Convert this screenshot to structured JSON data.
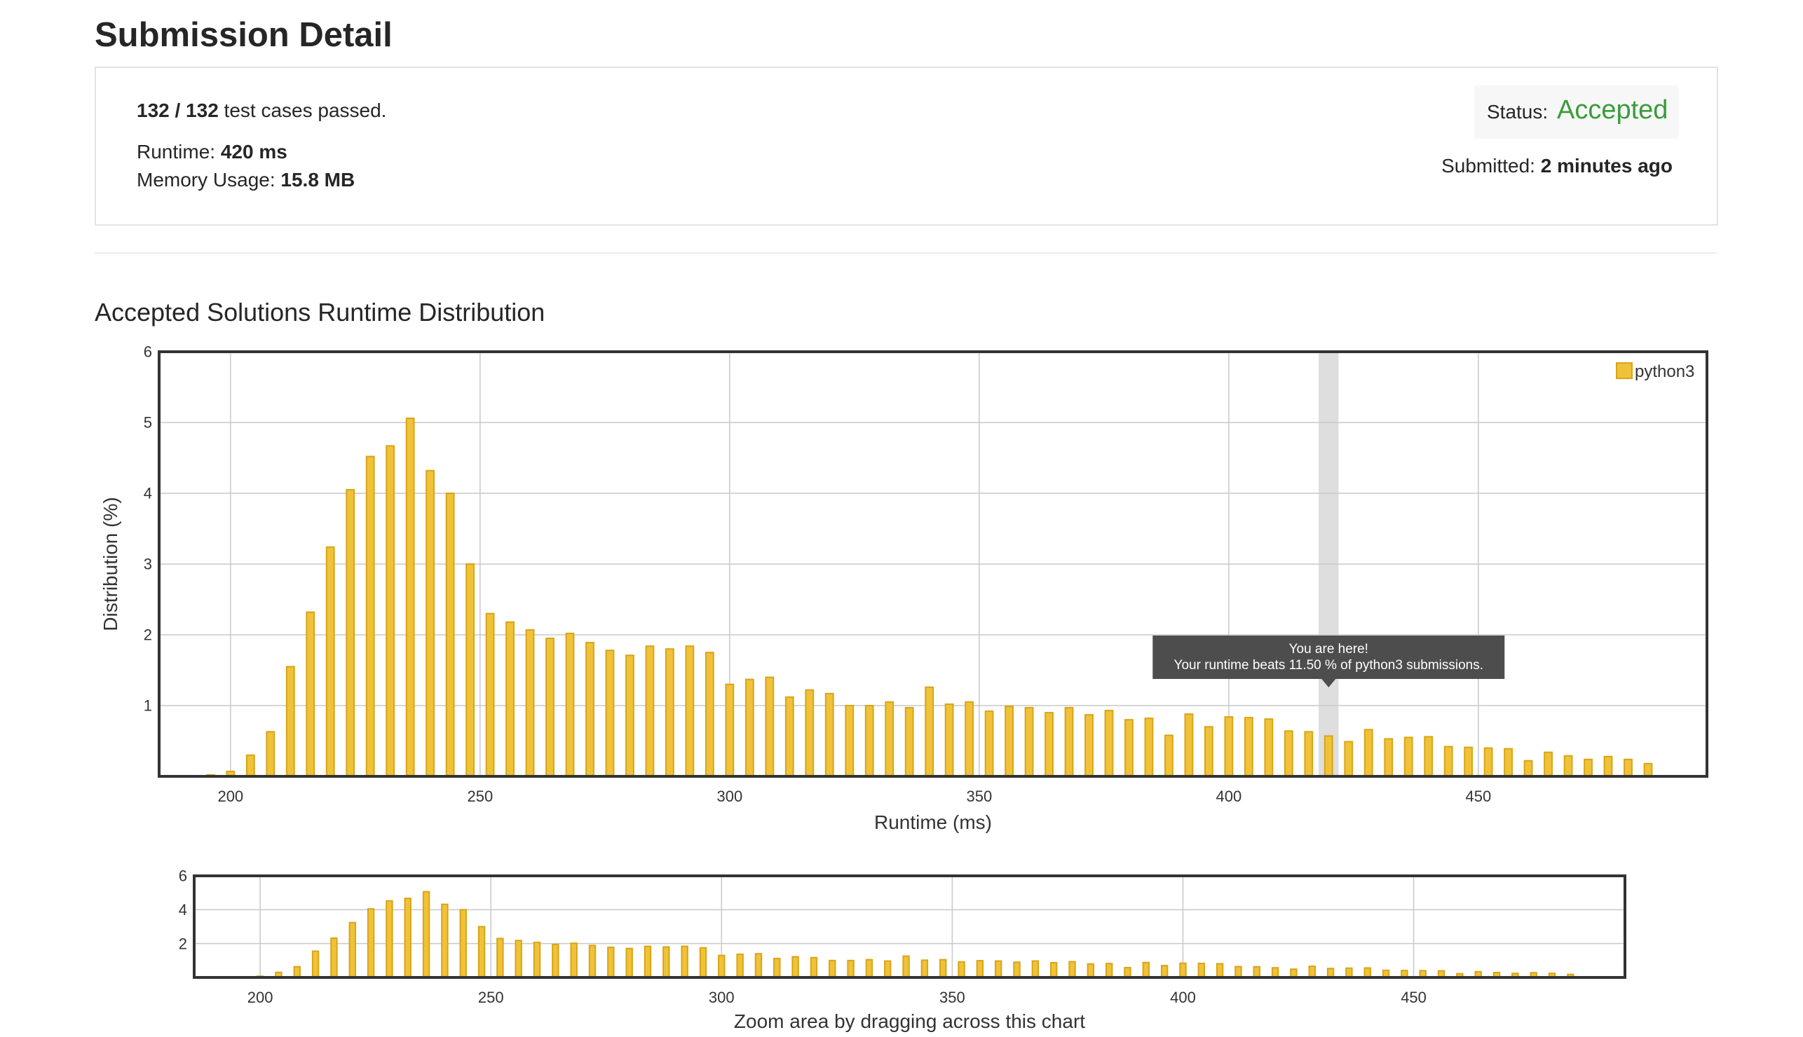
{
  "page": {
    "title": "Submission Detail"
  },
  "summary": {
    "passed": "132 / 132",
    "passed_suffix": " test cases passed.",
    "runtime_label": "Runtime: ",
    "runtime_value": "420 ms",
    "memory_label": "Memory Usage: ",
    "memory_value": "15.8 MB",
    "status_label": "Status: ",
    "status_value": "Accepted",
    "submitted_label": "Submitted: ",
    "submitted_value": "2 minutes ago"
  },
  "colors": {
    "bar_fill": "#f0c23a",
    "bar_stroke": "#d9a515",
    "accepted": "#3b9b3b",
    "highlight": "#dedede",
    "tooltip_bg": "#4d4d4d"
  },
  "section": {
    "title": "Accepted Solutions Runtime Distribution"
  },
  "tooltip": {
    "line1": "You are here!",
    "line2": "Your runtime beats 11.50 % of python3 submissions."
  },
  "zoom_caption": "Zoom area by dragging across this chart",
  "chart_data": [
    {
      "type": "bar",
      "xlabel": "Runtime (ms)",
      "ylabel": "Distribution (%)",
      "xlim": [
        185.7,
        495.8
      ],
      "ylim": [
        0,
        6
      ],
      "x_ticks": [
        200,
        250,
        300,
        350,
        400,
        450
      ],
      "y_ticks": [
        1,
        2,
        3,
        4,
        5,
        6
      ],
      "grid": true,
      "legend_position": "top-right",
      "highlight_x": 420,
      "series": [
        {
          "name": "python3",
          "color": "#f0c23a",
          "x": [
            196,
            200,
            204,
            208,
            212,
            216,
            220,
            224,
            228,
            232,
            236,
            240,
            244,
            248,
            252,
            256,
            260,
            264,
            268,
            272,
            276,
            280,
            284,
            288,
            292,
            296,
            300,
            304,
            308,
            312,
            316,
            320,
            324,
            328,
            332,
            336,
            340,
            344,
            348,
            352,
            356,
            360,
            364,
            368,
            372,
            376,
            380,
            384,
            388,
            392,
            396,
            400,
            404,
            408,
            412,
            416,
            420,
            424,
            428,
            432,
            436,
            440,
            444,
            448,
            452,
            456,
            460,
            464,
            468,
            472,
            476,
            480,
            484
          ],
          "values": [
            0.02,
            0.07,
            0.3,
            0.63,
            1.55,
            2.32,
            3.24,
            4.05,
            4.52,
            4.67,
            5.06,
            4.32,
            4.0,
            3.0,
            2.3,
            2.18,
            2.07,
            1.95,
            2.02,
            1.89,
            1.78,
            1.71,
            1.84,
            1.8,
            1.84,
            1.75,
            1.3,
            1.37,
            1.4,
            1.12,
            1.22,
            1.17,
            1.0,
            1.0,
            1.05,
            0.97,
            1.26,
            1.02,
            1.05,
            0.92,
            0.99,
            0.97,
            0.9,
            0.97,
            0.87,
            0.93,
            0.8,
            0.82,
            0.58,
            0.88,
            0.7,
            0.84,
            0.83,
            0.81,
            0.64,
            0.63,
            0.57,
            0.49,
            0.66,
            0.53,
            0.55,
            0.56,
            0.42,
            0.41,
            0.4,
            0.39,
            0.22,
            0.34,
            0.29,
            0.24,
            0.28,
            0.24,
            0.18
          ]
        }
      ]
    },
    {
      "type": "bar",
      "xlabel": "Zoom area by dragging across this chart",
      "xlim": [
        185.7,
        495.8
      ],
      "ylim": [
        0,
        6
      ],
      "x_ticks": [
        200,
        250,
        300,
        350,
        400,
        450
      ],
      "y_ticks": [
        2,
        4,
        6
      ],
      "grid": true,
      "series": [
        {
          "name": "python3",
          "color": "#f0c23a",
          "same_as_main": true
        }
      ]
    }
  ]
}
